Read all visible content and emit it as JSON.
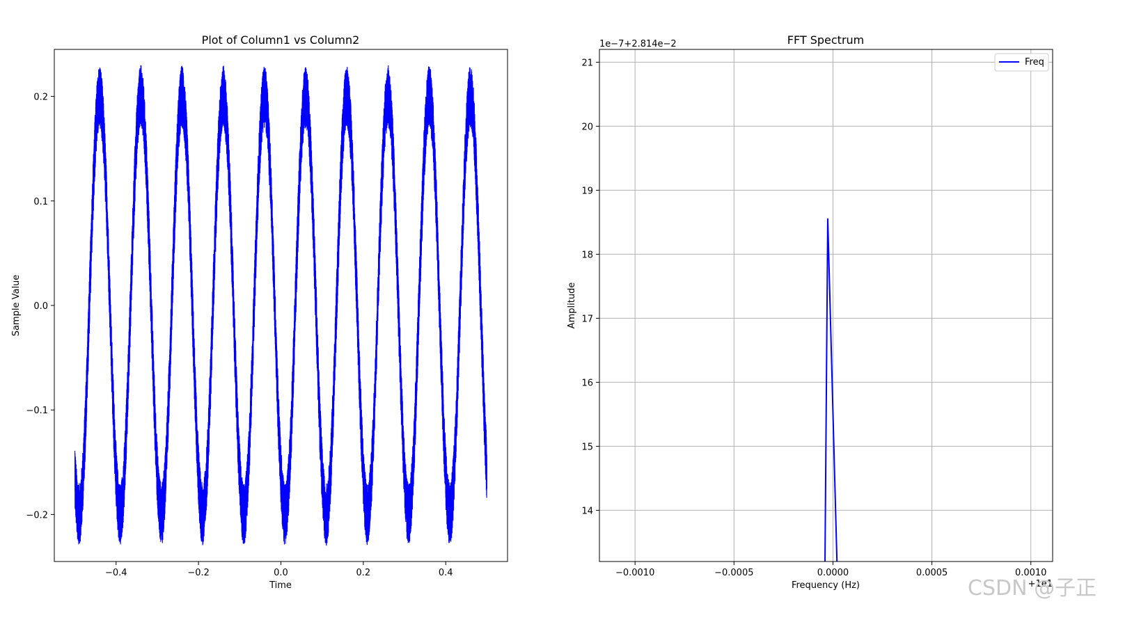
{
  "chart_data": [
    {
      "type": "line",
      "title": "Plot of Column1 vs Column2",
      "xlabel": "Time",
      "ylabel": "Sample Value",
      "xlim": [
        -0.55,
        0.55
      ],
      "ylim": [
        -0.245,
        0.245
      ],
      "xticks": [
        -0.4,
        -0.2,
        0.0,
        0.2,
        0.4
      ],
      "xtick_labels": [
        "−0.4",
        "−0.2",
        "0.0",
        "0.2",
        "0.4"
      ],
      "yticks": [
        -0.2,
        -0.1,
        0.0,
        0.1,
        0.2
      ],
      "ytick_labels": [
        "−0.2",
        "−0.1",
        "0.0",
        "0.1",
        "0.2"
      ],
      "grid": false,
      "color": "#0000ff",
      "signal": {
        "x_range": [
          -0.5,
          0.5
        ],
        "frequency_hz": 10,
        "amplitude": 0.2,
        "noise_amplitude": 0.03,
        "phase_peak_time": -0.44
      }
    },
    {
      "type": "line",
      "title": "FFT Spectrum",
      "xlabel": "Frequency (Hz)",
      "ylabel": "Amplitude",
      "xlim": [
        -0.00118,
        0.00111
      ],
      "ylim": [
        13.2,
        21.2
      ],
      "xticks": [
        -0.001,
        -0.0005,
        0.0,
        0.0005,
        0.001
      ],
      "xtick_labels": [
        "−0.0010",
        "−0.0005",
        "0.0000",
        "0.0005",
        "0.0010"
      ],
      "yticks": [
        14,
        15,
        16,
        17,
        18,
        19,
        20,
        21
      ],
      "ytick_labels": [
        "14",
        "15",
        "16",
        "17",
        "18",
        "19",
        "20",
        "21"
      ],
      "x_offset_label": "+1e1",
      "y_offset_label": "1e−7+2.814e−2",
      "grid": true,
      "legend": "top-right",
      "series": [
        {
          "name": "Freq",
          "color": "#0000ff",
          "x": [
            -4.2e-05,
            -2.63e-05,
            2.63e-05
          ],
          "y": [
            12.5,
            18.56,
            12.5
          ]
        }
      ]
    }
  ],
  "watermark": "CSDN @子正"
}
